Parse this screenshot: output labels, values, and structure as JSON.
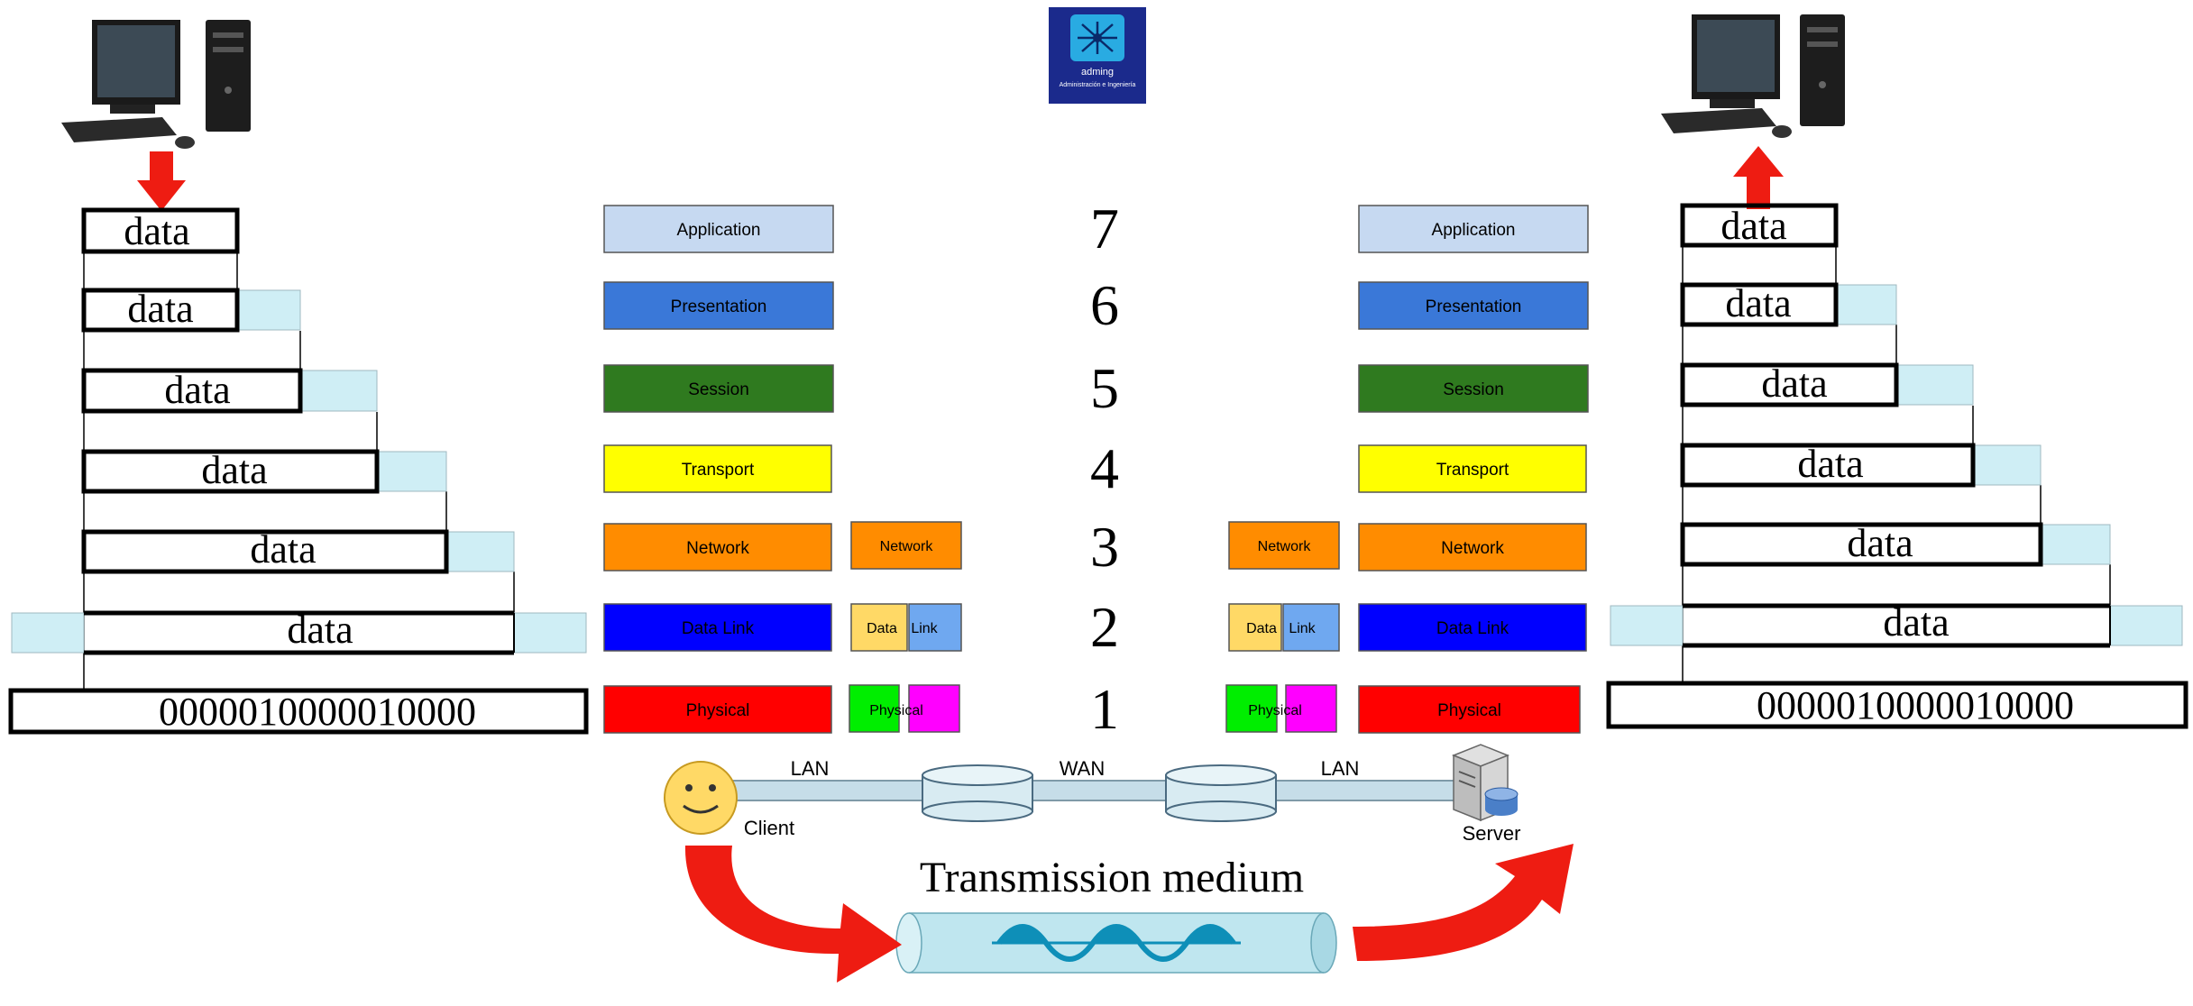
{
  "logo": {
    "brand": "adming",
    "tagline": "Administración e Ingeniería",
    "color": "#1b2a8c"
  },
  "encap": {
    "data_label": "data",
    "bits": "0000010000010000",
    "header_color": "#cfeef5"
  },
  "stack_left": {
    "layers": [
      {
        "name": "Application",
        "color": "#c6d9f1",
        "text_color": "#000000"
      },
      {
        "name": "Presentation",
        "color": "#3a78d8",
        "text_color": "#000000"
      },
      {
        "name": "Session",
        "color": "#2f7a1f",
        "text_color": "#000000"
      },
      {
        "name": "Transport",
        "color": "#ffff00",
        "text_color": "#000000"
      },
      {
        "name": "Network",
        "color": "#ff8c00",
        "text_color": "#000000"
      },
      {
        "name": "Data Link",
        "color": "#0000ff",
        "text_color": "#000000"
      },
      {
        "name": "Physical",
        "color": "#ff0000",
        "text_color": "#000000"
      }
    ]
  },
  "stack_right": {
    "layers": [
      {
        "name": "Application",
        "color": "#c6d9f1",
        "text_color": "#000000"
      },
      {
        "name": "Presentation",
        "color": "#3a78d8",
        "text_color": "#000000"
      },
      {
        "name": "Session",
        "color": "#2f7a1f",
        "text_color": "#000000"
      },
      {
        "name": "Transport",
        "color": "#ffff00",
        "text_color": "#000000"
      },
      {
        "name": "Network",
        "color": "#ff8c00",
        "text_color": "#000000"
      },
      {
        "name": "Data Link",
        "color": "#0000ff",
        "text_color": "#000000"
      },
      {
        "name": "Physical",
        "color": "#ff0000",
        "text_color": "#000000"
      }
    ]
  },
  "layer_numbers": [
    "7",
    "6",
    "5",
    "4",
    "3",
    "2",
    "1"
  ],
  "device": {
    "network": "Network",
    "data": "Data",
    "link": "Link",
    "physical": "Physical",
    "network_color": "#ff8c00",
    "data_color": "#ffd966",
    "link_color": "#6fa8f0",
    "physical_color": "#00ee00",
    "physical2_color": "#ff00ff"
  },
  "network": {
    "lan_left": "LAN",
    "wan": "WAN",
    "lan_right": "LAN",
    "client": "Client",
    "server": "Server"
  },
  "medium": {
    "title": "Transmission medium",
    "arrow_color": "#ee1c12",
    "tube_color": "#bfe6ef",
    "wave_color": "#0e8fb8"
  }
}
